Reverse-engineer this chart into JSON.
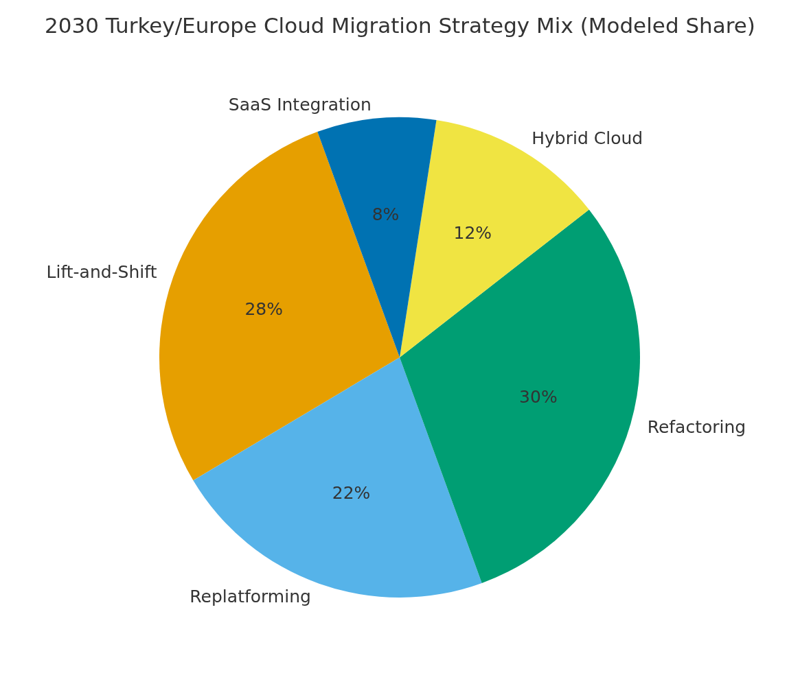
{
  "chart_data": {
    "type": "pie",
    "title": "2030 Turkey/Europe Cloud Migration Strategy Mix (Modeled Share)",
    "categories": [
      "Lift-and-Shift",
      "Replatforming",
      "Refactoring",
      "Hybrid Cloud",
      "SaaS Integration"
    ],
    "values": [
      28,
      22,
      30,
      12,
      8
    ],
    "value_labels": [
      "28%",
      "22%",
      "30%",
      "12%",
      "8%"
    ],
    "colors": [
      "#e69f00",
      "#56b3e9",
      "#009e73",
      "#f0e442",
      "#0072b2"
    ],
    "legend": false
  }
}
